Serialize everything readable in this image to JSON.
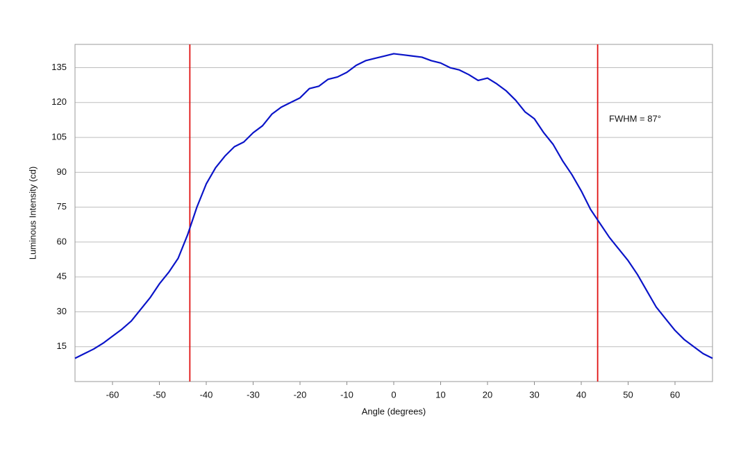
{
  "chart_data": {
    "type": "line",
    "xlabel": "Angle (degrees)",
    "ylabel": "Luminous Intensity (cd)",
    "annotation": "FWHM = 87°",
    "x": [
      -68,
      -66,
      -64,
      -62,
      -60,
      -58,
      -56,
      -54,
      -52,
      -50,
      -48,
      -46,
      -44,
      -42,
      -40,
      -38,
      -36,
      -34,
      -32,
      -30,
      -28,
      -26,
      -24,
      -22,
      -20,
      -18,
      -16,
      -14,
      -12,
      -10,
      -8,
      -6,
      -4,
      -2,
      0,
      2,
      4,
      6,
      8,
      10,
      12,
      14,
      16,
      18,
      20,
      22,
      24,
      26,
      28,
      30,
      32,
      34,
      36,
      38,
      40,
      42,
      44,
      46,
      48,
      50,
      52,
      54,
      56,
      58,
      60,
      62,
      64,
      66,
      68
    ],
    "series": [
      {
        "color": "#0a14c8",
        "values": [
          10,
          12,
          14,
          16.5,
          19.5,
          22.5,
          26,
          31,
          36,
          42,
          47,
          53,
          63,
          75,
          85,
          92,
          97,
          101,
          103,
          107,
          110,
          115,
          118,
          120,
          122,
          126,
          127,
          130,
          131,
          133,
          136,
          138,
          139,
          140,
          141,
          140.5,
          140,
          139.5,
          138,
          137,
          135,
          134,
          132,
          129.5,
          130.5,
          128,
          125,
          121,
          116,
          113,
          107,
          102,
          95,
          89,
          82,
          74,
          68,
          62,
          57,
          52,
          46,
          39,
          32,
          27,
          22,
          18,
          15,
          12,
          10
        ]
      }
    ],
    "vlines": [
      -43.5,
      43.5
    ],
    "vline_color": "#e01010",
    "xlim": [
      -68,
      68
    ],
    "ylim": [
      0,
      145
    ],
    "xticks": [
      -60,
      -50,
      -40,
      -30,
      -20,
      -10,
      0,
      10,
      20,
      30,
      40,
      50,
      60
    ],
    "yticks": [
      15,
      30,
      45,
      60,
      75,
      90,
      105,
      120,
      135
    ],
    "grid": true
  }
}
